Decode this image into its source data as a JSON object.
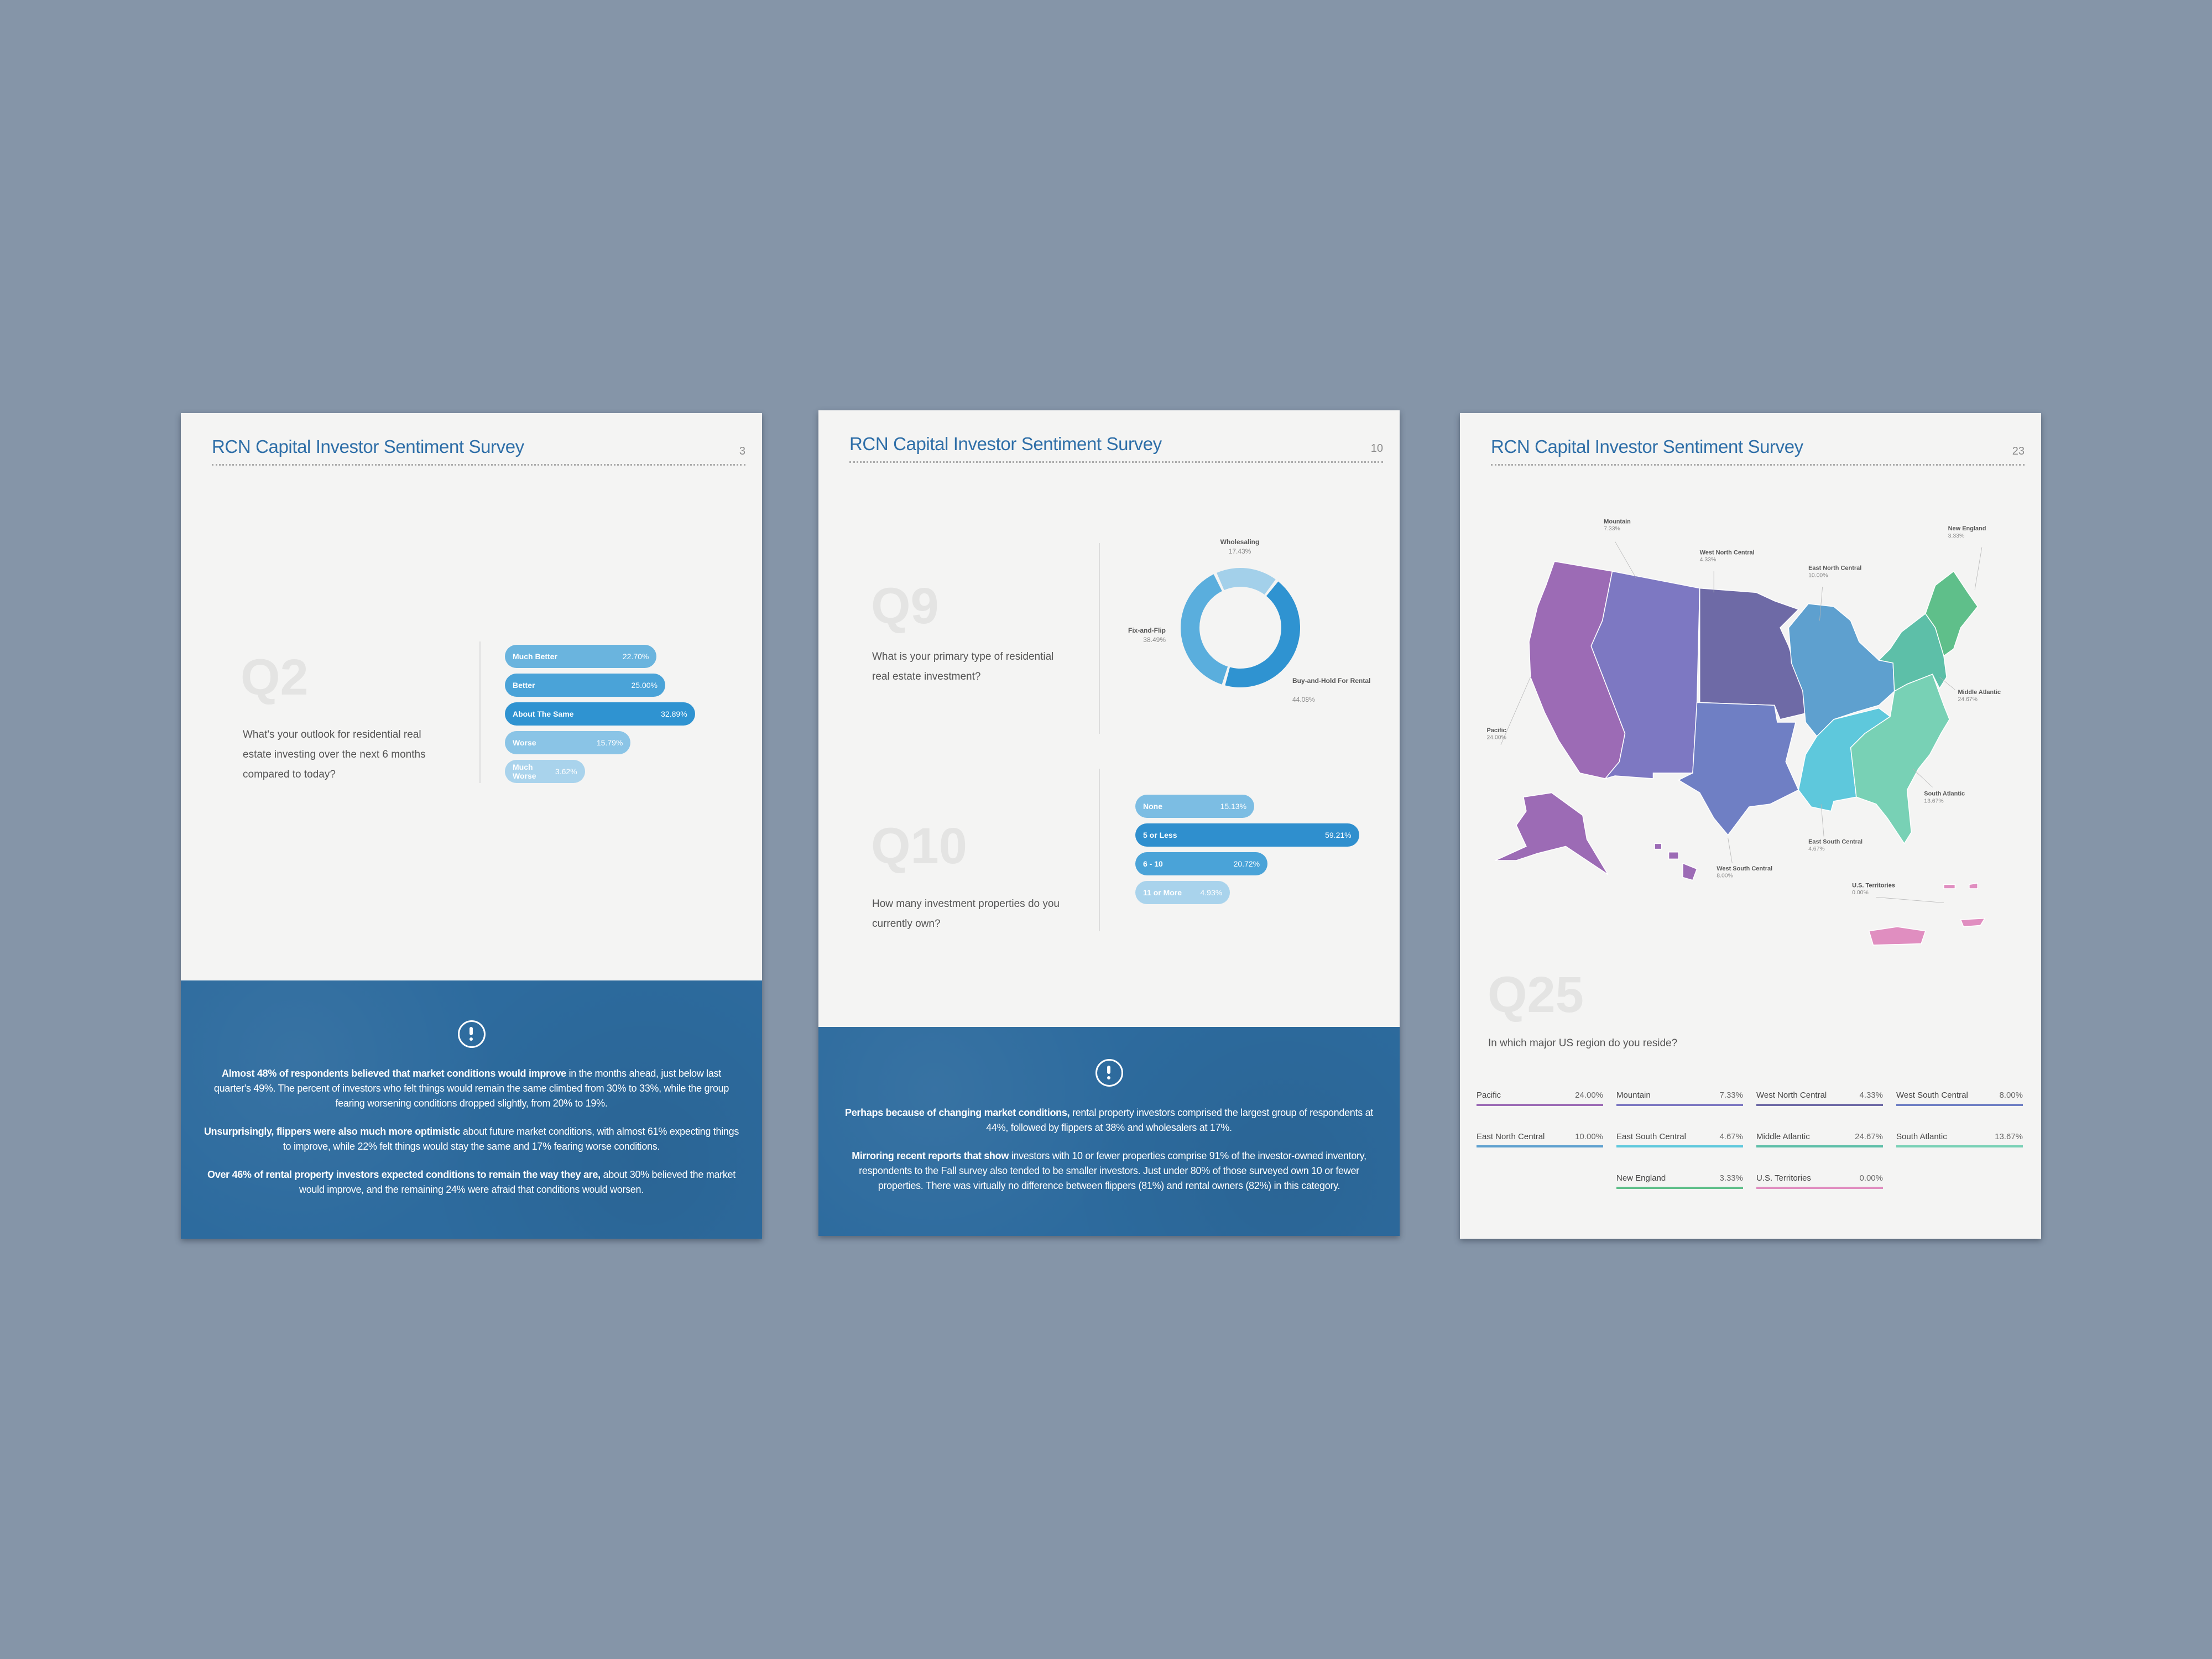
{
  "header_title": "RCN Capital Investor Sentiment Survey",
  "colors": {
    "background": "#8595a8",
    "title": "#2f6fa8",
    "band": "#2d6b9e"
  },
  "pages": [
    {
      "page_number": "3",
      "question": {
        "label": "Q2",
        "text": "What's your outlook for residential real estate investing over the next 6 months compared to today?"
      },
      "icon": "alert-circle-icon",
      "paragraphs": [
        {
          "bold": "Almost 48% of respondents believed that market conditions would improve",
          "text": " in the months ahead, just below last quarter's 49%. The percent of investors who felt things would remain the same climbed from 30% to 33%, while the group fearing worsening conditions dropped slightly, from 20% to 19%."
        },
        {
          "bold": "Unsurprisingly, flippers were also much more optimistic",
          "text": " about future market conditions, with almost 61% expecting things to improve, while 22% felt things would stay the same and 17% fearing worse conditions."
        },
        {
          "bold": "Over 46% of rental property investors expected conditions to remain the way they are,",
          "text": " about 30% believed the market would improve, and the remaining 24% were afraid that conditions would worsen."
        }
      ]
    },
    {
      "page_number": "10",
      "questions": [
        {
          "label": "Q9",
          "text": "What is your primary type of residential real estate investment?"
        },
        {
          "label": "Q10",
          "text": "How many investment properties do you currently own?"
        }
      ],
      "icon": "alert-circle-icon",
      "paragraphs": [
        {
          "bold": "Perhaps because of changing market conditions,",
          "text": " rental property investors comprised the largest group of respondents at 44%, followed by flippers at 38% and wholesalers at 17%."
        },
        {
          "bold": "Mirroring recent reports that show",
          "text": " investors with 10 or fewer properties comprise 91% of the investor-owned inventory, respondents to the Fall survey also tended to be smaller investors. Just under 80% of those surveyed own 10 or fewer properties. There was virtually no difference between flippers (81%) and rental owners (82%) in this category."
        }
      ]
    },
    {
      "page_number": "23",
      "question": {
        "label": "Q25",
        "text": "In which major US region do you reside?"
      }
    }
  ],
  "chart_data": [
    {
      "type": "bar",
      "orientation": "horizontal",
      "categories": [
        "Much Better",
        "Better",
        "About The Same",
        "Worse",
        "Much Worse"
      ],
      "values": [
        22.7,
        25.0,
        32.89,
        15.79,
        3.62
      ],
      "labels": [
        "22.70%",
        "25.00%",
        "32.89%",
        "15.79%",
        "3.62%"
      ],
      "colors": [
        "#6ab4de",
        "#4aa3d8",
        "#2f93d1",
        "#8ac4e6",
        "#a9d3ec"
      ]
    },
    {
      "type": "pie",
      "style": "donut",
      "categories": [
        "Wholesaling",
        "Buy-and-Hold For Rental",
        "Fix-and-Flip"
      ],
      "values": [
        17.43,
        44.08,
        38.49
      ],
      "labels": [
        "17.43%",
        "44.08%",
        "38.49%"
      ],
      "colors": [
        "#a3d0ea",
        "#2f93d1",
        "#5aaedd"
      ]
    },
    {
      "type": "bar",
      "orientation": "horizontal",
      "categories": [
        "None",
        "5 or Less",
        "6 - 10",
        "11 or More"
      ],
      "values": [
        15.13,
        59.21,
        20.72,
        4.93
      ],
      "labels": [
        "15.13%",
        "59.21%",
        "20.72%",
        "4.93%"
      ],
      "colors": [
        "#7cbde3",
        "#2f8fce",
        "#4aa3d8",
        "#a9d3ec"
      ]
    },
    {
      "type": "table",
      "style": "choropleth-map",
      "categories": [
        "Pacific",
        "Mountain",
        "West North Central",
        "West South Central",
        "East North Central",
        "East South Central",
        "Middle Atlantic",
        "South Atlantic",
        "New England",
        "U.S. Territories"
      ],
      "values": [
        24.0,
        7.33,
        4.33,
        8.0,
        10.0,
        4.67,
        24.67,
        13.67,
        3.33,
        0.0
      ],
      "labels": [
        "24.00%",
        "7.33%",
        "4.33%",
        "8.00%",
        "10.00%",
        "4.67%",
        "24.67%",
        "13.67%",
        "3.33%",
        "0.00%"
      ],
      "colors": [
        "#9c6bb5",
        "#7d78c2",
        "#6e6aa6",
        "#6f7fc4",
        "#5ea0cf",
        "#5ec8dc",
        "#5dbfa8",
        "#78d1b5",
        "#5fbf8a",
        "#e08ec0"
      ]
    }
  ]
}
